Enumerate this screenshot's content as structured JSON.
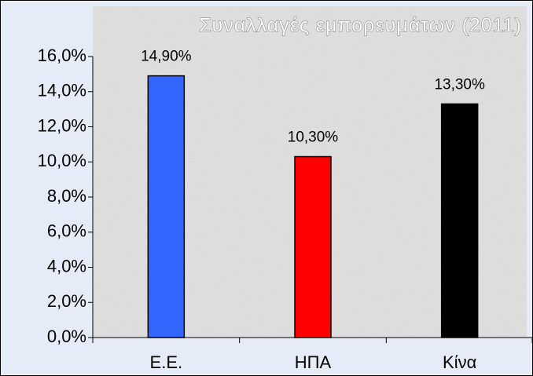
{
  "chart_data": {
    "type": "bar",
    "title": "Συναλλαγές εμπορευμάτων (2011)",
    "categories": [
      "Ε.Ε.",
      "ΗΠΑ",
      "Κίνα"
    ],
    "values": [
      14.9,
      10.3,
      13.3
    ],
    "value_labels": [
      "14,90%",
      "10,30%",
      "13,30%"
    ],
    "colors": [
      "#3366ff",
      "#ff0000",
      "#000000"
    ],
    "ylim": [
      0,
      16
    ],
    "yticks": [
      {
        "value": 0,
        "label": "0,0%"
      },
      {
        "value": 2,
        "label": "2,0%"
      },
      {
        "value": 4,
        "label": "4,0%"
      },
      {
        "value": 6,
        "label": "6,0%"
      },
      {
        "value": 8,
        "label": "8,0%"
      },
      {
        "value": 10,
        "label": "10,0%"
      },
      {
        "value": 12,
        "label": "12,0%"
      },
      {
        "value": 14,
        "label": "14,0%"
      },
      {
        "value": 16,
        "label": "16,0%"
      }
    ]
  }
}
